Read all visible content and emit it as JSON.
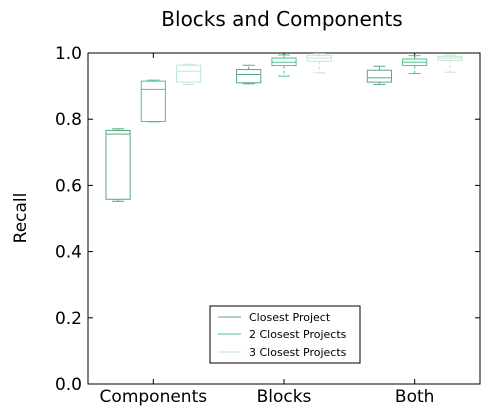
{
  "chart_data": {
    "type": "box",
    "title": "Blocks and Components",
    "xlabel": "",
    "ylabel": "Recall",
    "ylim": [
      0.0,
      1.0
    ],
    "yticks": [
      "0.0",
      "0.2",
      "0.4",
      "0.6",
      "0.8",
      "1.0"
    ],
    "categories": [
      "Components",
      "Blocks",
      "Both"
    ],
    "legend_position": "lower-center",
    "series": [
      {
        "name": "Closest Project",
        "color": "#5aa882",
        "boxes": [
          {
            "whislo": 0.552,
            "q1": 0.558,
            "med": 0.755,
            "q3": 0.766,
            "whishi": 0.771
          },
          {
            "whislo": 0.907,
            "q1": 0.91,
            "med": 0.935,
            "q3": 0.95,
            "whishi": 0.963
          },
          {
            "whislo": 0.905,
            "q1": 0.912,
            "med": 0.925,
            "q3": 0.948,
            "whishi": 0.96
          }
        ]
      },
      {
        "name": "2 Closest Projects",
        "color": "#52c28e",
        "boxes": [
          {
            "whislo": 0.792,
            "q1": 0.793,
            "med": 0.89,
            "q3": 0.915,
            "whishi": 0.918
          },
          {
            "whislo": 0.93,
            "q1": 0.962,
            "med": 0.972,
            "q3": 0.985,
            "whishi": 0.994
          },
          {
            "whislo": 0.938,
            "q1": 0.962,
            "med": 0.972,
            "q3": 0.982,
            "whishi": 0.992
          }
        ]
      },
      {
        "name": "3 Closest Projects",
        "color": "#bfe8cf",
        "boxes": [
          {
            "whislo": 0.905,
            "q1": 0.912,
            "med": 0.945,
            "q3": 0.963,
            "whishi": 0.966
          },
          {
            "whislo": 0.94,
            "q1": 0.975,
            "med": 0.985,
            "q3": 0.993,
            "whishi": 0.998
          },
          {
            "whislo": 0.942,
            "q1": 0.978,
            "med": 0.985,
            "q3": 0.99,
            "whishi": 0.994
          }
        ]
      }
    ]
  }
}
